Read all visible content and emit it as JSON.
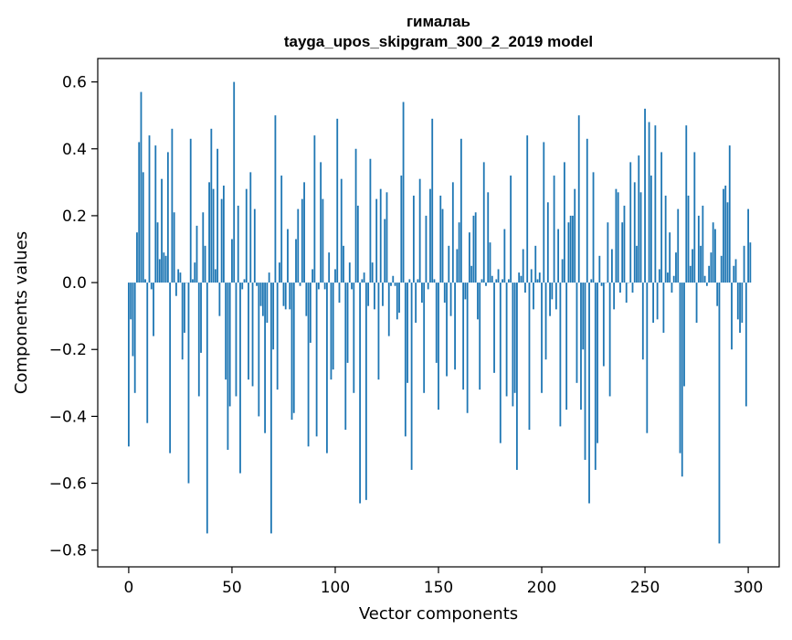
{
  "chart_data": {
    "type": "bar",
    "title_line1": "гималаь",
    "title_line2": "tayga_upos_skipgram_300_2_2019 model",
    "xlabel": "Vector components",
    "ylabel": "Components values",
    "xlim": [
      -15,
      315
    ],
    "ylim": [
      -0.85,
      0.67
    ],
    "xticks": [
      0,
      50,
      100,
      150,
      200,
      250,
      300
    ],
    "xtick_labels": [
      "0",
      "50",
      "100",
      "150",
      "200",
      "250",
      "300"
    ],
    "yticks": [
      -0.8,
      -0.6,
      -0.4,
      -0.2,
      0.0,
      0.2,
      0.4,
      0.6
    ],
    "ytick_labels": [
      "−0.8",
      "−0.6",
      "−0.4",
      "−0.2",
      "0.0",
      "0.2",
      "0.4",
      "0.6"
    ],
    "bar_color": "#1f77b4",
    "grid": false,
    "values": [
      -0.49,
      -0.11,
      -0.22,
      -0.33,
      0.15,
      0.42,
      0.57,
      0.33,
      0.01,
      -0.42,
      0.44,
      -0.02,
      -0.16,
      0.41,
      0.18,
      0.07,
      0.31,
      0.09,
      0.08,
      0.39,
      -0.51,
      0.46,
      0.21,
      -0.04,
      0.04,
      0.03,
      -0.23,
      -0.15,
      0.0,
      -0.6,
      0.43,
      0.01,
      0.06,
      0.17,
      -0.34,
      -0.21,
      0.21,
      0.11,
      -0.75,
      0.3,
      0.46,
      0.28,
      0.04,
      0.4,
      -0.1,
      0.25,
      0.29,
      -0.29,
      -0.5,
      -0.37,
      0.13,
      0.6,
      -0.34,
      0.23,
      -0.57,
      -0.02,
      0.01,
      0.28,
      -0.29,
      0.33,
      -0.31,
      0.22,
      -0.01,
      -0.4,
      -0.07,
      -0.1,
      -0.45,
      -0.12,
      0.03,
      -0.75,
      -0.2,
      0.5,
      -0.32,
      0.06,
      0.32,
      -0.07,
      -0.08,
      0.16,
      -0.08,
      -0.41,
      -0.39,
      0.13,
      0.22,
      -0.01,
      0.25,
      0.3,
      -0.1,
      -0.49,
      -0.18,
      0.04,
      0.44,
      -0.46,
      -0.02,
      0.36,
      0.25,
      -0.02,
      -0.51,
      0.09,
      -0.29,
      -0.26,
      0.04,
      0.49,
      -0.06,
      0.31,
      0.11,
      -0.44,
      -0.24,
      0.06,
      -0.02,
      -0.33,
      0.4,
      0.23,
      -0.66,
      0.01,
      0.03,
      -0.65,
      -0.07,
      0.37,
      0.06,
      -0.08,
      0.25,
      -0.29,
      0.28,
      -0.07,
      0.19,
      0.27,
      -0.16,
      -0.01,
      0.02,
      -0.01,
      -0.11,
      -0.09,
      0.32,
      0.54,
      -0.46,
      -0.3,
      0.01,
      -0.56,
      0.26,
      -0.12,
      0.01,
      0.31,
      -0.06,
      -0.33,
      0.2,
      -0.02,
      0.28,
      0.49,
      0.01,
      -0.24,
      -0.38,
      0.26,
      0.22,
      -0.06,
      -0.28,
      0.11,
      -0.1,
      0.3,
      -0.26,
      0.1,
      0.18,
      0.43,
      -0.32,
      -0.05,
      -0.39,
      0.15,
      0.05,
      0.2,
      0.21,
      -0.11,
      -0.32,
      0.01,
      0.36,
      -0.01,
      0.27,
      0.12,
      0.02,
      -0.27,
      0.01,
      0.04,
      -0.48,
      0.01,
      0.16,
      -0.34,
      0.01,
      0.32,
      -0.37,
      -0.33,
      -0.56,
      0.03,
      0.02,
      0.1,
      -0.03,
      0.44,
      -0.44,
      0.04,
      -0.08,
      0.11,
      0.01,
      0.03,
      -0.33,
      0.42,
      -0.23,
      0.24,
      -0.1,
      -0.05,
      0.32,
      -0.08,
      0.16,
      -0.43,
      0.07,
      0.36,
      -0.38,
      0.18,
      0.2,
      0.2,
      0.28,
      -0.3,
      0.5,
      -0.38,
      -0.2,
      -0.53,
      0.43,
      -0.66,
      0.01,
      0.33,
      -0.56,
      -0.48,
      0.08,
      -0.01,
      -0.25,
      0.0,
      0.18,
      -0.34,
      0.1,
      -0.08,
      0.28,
      0.27,
      -0.03,
      0.18,
      0.23,
      -0.06,
      0.0,
      0.36,
      -0.03,
      0.3,
      0.11,
      0.38,
      0.27,
      -0.23,
      0.52,
      -0.45,
      0.48,
      0.32,
      -0.12,
      0.47,
      -0.11,
      0.04,
      0.39,
      -0.15,
      0.26,
      0.03,
      0.15,
      -0.03,
      0.02,
      0.09,
      0.22,
      -0.51,
      -0.58,
      -0.31,
      0.47,
      0.26,
      0.05,
      0.1,
      0.39,
      -0.12,
      0.2,
      0.11,
      0.23,
      0.02,
      -0.01,
      0.05,
      0.09,
      0.18,
      0.16,
      -0.07,
      -0.78,
      0.08,
      0.28,
      0.29,
      0.24,
      0.41,
      -0.2,
      0.05,
      0.07,
      -0.11,
      -0.15,
      -0.12,
      0.11,
      -0.37,
      0.22,
      0.12
    ]
  }
}
